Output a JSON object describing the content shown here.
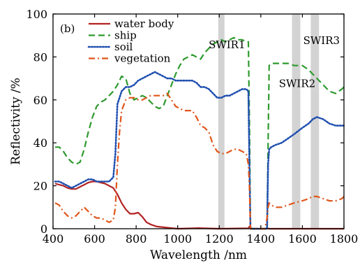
{
  "chart_data": {
    "type": "line",
    "panel_label": "(b)",
    "xlabel": "Wavelength /nm",
    "ylabel": "Reflectivity /%",
    "xlim": [
      400,
      1800
    ],
    "ylim": [
      0,
      100
    ],
    "xticks": [
      400,
      600,
      800,
      1000,
      1200,
      1400,
      1600,
      1800
    ],
    "yticks": [
      0,
      20,
      40,
      60,
      80,
      100
    ],
    "legend_position": "top-left",
    "bands": [
      {
        "name": "SWIR1",
        "range": [
          1195,
          1225
        ]
      },
      {
        "name": "SWIR2",
        "range": [
          1550,
          1590
        ]
      },
      {
        "name": "SWIR3",
        "range": [
          1640,
          1680
        ]
      }
    ],
    "series": [
      {
        "name": "water body",
        "color": "#b22222",
        "dash": "solid",
        "x": [
          410,
          430,
          450,
          470,
          490,
          510,
          530,
          550,
          570,
          590,
          610,
          630,
          650,
          670,
          690,
          710,
          730,
          750,
          770,
          790,
          810,
          830,
          850,
          870,
          900,
          950,
          1000,
          1100,
          1200,
          1340,
          1345,
          1350,
          1355,
          1360,
          1400,
          1420,
          1430,
          1440,
          1500,
          1600,
          1700,
          1800
        ],
        "y": [
          21,
          20.5,
          20,
          19,
          18.5,
          18.5,
          19.5,
          20.5,
          21.5,
          22,
          22,
          21.5,
          21,
          20,
          19,
          16,
          12,
          9,
          7,
          7,
          7.5,
          5.5,
          3,
          2,
          1,
          0.5,
          0,
          0.3,
          0,
          0.2,
          1,
          0.5,
          0.2,
          0,
          0,
          0,
          0.2,
          0,
          0,
          0,
          0,
          0
        ]
      },
      {
        "name": "ship",
        "color": "#2e9a2e",
        "dash": "dashed",
        "x": [
          410,
          430,
          450,
          470,
          490,
          510,
          530,
          550,
          570,
          590,
          610,
          630,
          650,
          670,
          690,
          710,
          730,
          750,
          770,
          790,
          810,
          830,
          850,
          870,
          890,
          910,
          930,
          950,
          970,
          990,
          1010,
          1030,
          1050,
          1070,
          1090,
          1110,
          1130,
          1150,
          1170,
          1190,
          1210,
          1230,
          1250,
          1270,
          1290,
          1310,
          1330,
          1340,
          1345,
          1350,
          1360,
          1400,
          1420,
          1430,
          1435,
          1440,
          1450,
          1470,
          1500,
          1530,
          1560,
          1600,
          1630,
          1650,
          1670,
          1700,
          1730,
          1760,
          1790,
          1800
        ],
        "y": [
          38,
          38,
          36,
          33,
          31,
          30,
          31,
          37,
          45,
          52,
          57,
          59,
          60,
          62,
          64,
          67,
          71,
          70,
          63,
          60,
          61,
          62,
          61,
          59,
          57,
          56,
          57,
          62,
          67,
          72,
          76,
          79,
          80,
          81,
          80,
          79,
          82,
          84,
          86,
          87,
          88,
          87,
          88,
          89,
          88,
          88,
          87,
          87,
          50,
          0,
          0,
          0,
          0,
          0,
          40,
          76,
          77,
          77,
          77,
          77,
          76,
          76,
          74,
          72,
          70,
          67,
          64,
          63,
          65,
          66
        ]
      },
      {
        "name": "soil",
        "color": "#1f4fb0",
        "dash": "dotted",
        "x": [
          410,
          430,
          450,
          470,
          490,
          510,
          530,
          550,
          570,
          590,
          610,
          630,
          650,
          670,
          690,
          700,
          710,
          730,
          750,
          770,
          790,
          810,
          830,
          850,
          870,
          890,
          910,
          930,
          950,
          970,
          990,
          1010,
          1030,
          1050,
          1070,
          1090,
          1110,
          1130,
          1150,
          1170,
          1190,
          1210,
          1230,
          1250,
          1270,
          1290,
          1310,
          1330,
          1340,
          1345,
          1350,
          1360,
          1400,
          1420,
          1430,
          1435,
          1440,
          1450,
          1470,
          1500,
          1530,
          1560,
          1600,
          1630,
          1650,
          1670,
          1700,
          1730,
          1760,
          1790,
          1800
        ],
        "y": [
          22,
          22,
          21,
          20,
          19,
          20,
          21,
          22,
          23,
          23,
          22,
          22,
          22,
          22,
          24,
          35,
          58,
          64,
          66,
          66,
          67,
          69,
          70,
          71,
          72,
          73,
          72,
          71,
          70,
          70,
          69,
          69,
          69,
          69,
          69,
          68,
          66,
          66,
          65,
          63,
          61,
          61,
          62,
          62,
          63,
          64,
          65,
          65,
          64,
          30,
          0,
          0,
          0,
          0,
          0,
          30,
          37,
          38,
          39,
          40,
          42,
          44,
          47,
          49,
          51,
          52,
          51,
          49,
          48,
          48,
          48
        ]
      },
      {
        "name": "vegetation",
        "color": "#e0561b",
        "dash": "dashdot",
        "x": [
          410,
          430,
          450,
          470,
          490,
          510,
          530,
          550,
          570,
          590,
          610,
          630,
          650,
          670,
          690,
          700,
          710,
          720,
          730,
          750,
          770,
          790,
          810,
          830,
          850,
          870,
          890,
          910,
          930,
          950,
          970,
          990,
          1010,
          1030,
          1050,
          1070,
          1090,
          1110,
          1130,
          1150,
          1170,
          1190,
          1210,
          1230,
          1250,
          1270,
          1290,
          1310,
          1330,
          1340,
          1345,
          1350,
          1360,
          1400,
          1420,
          1430,
          1435,
          1440,
          1450,
          1470,
          1500,
          1530,
          1560,
          1600,
          1630,
          1650,
          1670,
          1700,
          1730,
          1760,
          1790,
          1800
        ],
        "y": [
          12,
          11,
          8,
          6,
          5,
          6,
          8,
          10,
          8,
          6,
          5,
          5,
          4,
          3,
          4,
          10,
          30,
          45,
          55,
          60,
          61,
          61,
          60,
          60,
          61,
          62,
          62,
          62,
          62,
          63,
          60,
          57,
          56,
          55,
          55,
          55,
          52,
          48,
          47,
          45,
          39,
          36,
          35,
          35,
          36,
          37,
          37,
          36,
          35,
          30,
          20,
          0,
          0,
          0,
          0,
          5,
          10,
          12,
          11,
          10,
          10,
          11,
          12,
          13,
          14,
          15,
          15,
          14,
          13,
          13,
          14,
          15
        ]
      }
    ]
  }
}
